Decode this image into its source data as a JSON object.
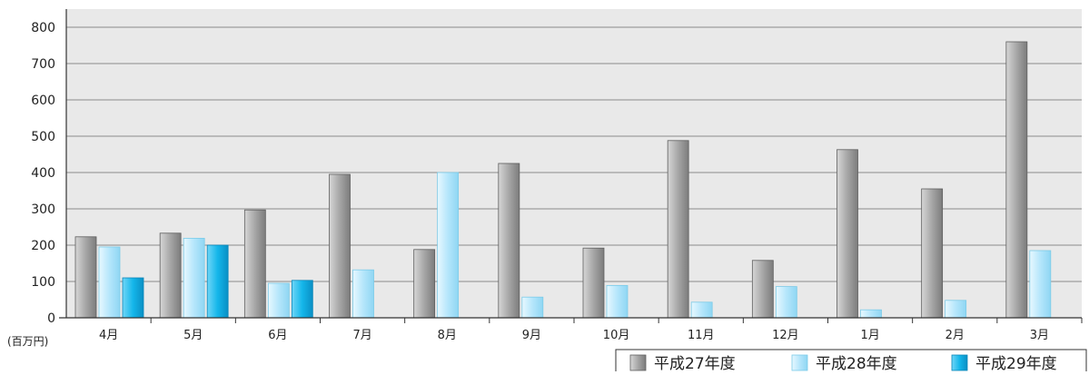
{
  "chart_data": {
    "type": "bar",
    "title": "",
    "xlabel": "",
    "ylabel": "",
    "unit_label": "(百万円)",
    "ylim": [
      0,
      850
    ],
    "yticks": [
      0,
      100,
      200,
      300,
      400,
      500,
      600,
      700,
      800
    ],
    "grid": true,
    "legend_position": "bottom-right",
    "categories": [
      "4月",
      "5月",
      "6月",
      "7月",
      "8月",
      "9月",
      "10月",
      "11月",
      "12月",
      "1月",
      "2月",
      "3月"
    ],
    "series": [
      {
        "name": "平成27年度",
        "color": "#a9a9a9",
        "values": [
          223,
          233,
          297,
          395,
          188,
          425,
          192,
          488,
          158,
          463,
          355,
          760
        ]
      },
      {
        "name": "平成28年度",
        "color": "#b6e8fb",
        "values": [
          195,
          219,
          95,
          132,
          400,
          57,
          89,
          43,
          86,
          22,
          48,
          185
        ]
      },
      {
        "name": "平成29年度",
        "color": "#14b6ea",
        "values": [
          110,
          200,
          103,
          null,
          null,
          null,
          null,
          null,
          null,
          null,
          null,
          null
        ]
      }
    ]
  }
}
